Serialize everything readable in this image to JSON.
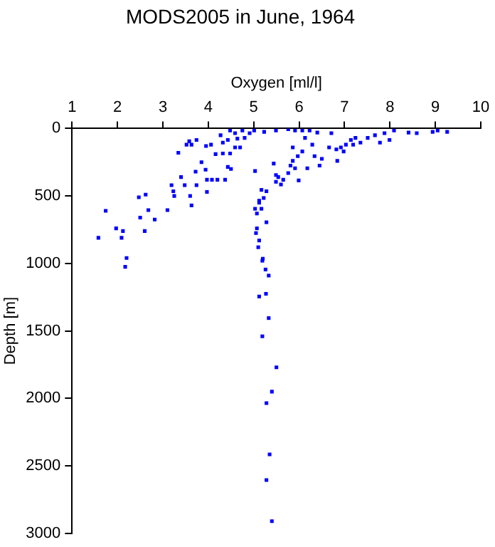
{
  "chart_data": {
    "type": "scatter",
    "title": "MODS2005 in June, 1964",
    "xlabel": "Oxygen [ml/l]",
    "ylabel": "Depth [m]",
    "xlim": [
      1,
      10
    ],
    "xticks": [
      1,
      2,
      3,
      4,
      5,
      6,
      7,
      8,
      9,
      10
    ],
    "ylim": [
      3000,
      0
    ],
    "yticks": [
      0,
      500,
      1000,
      1500,
      2000,
      2500,
      3000
    ],
    "grid": false,
    "legend": false,
    "marker": "square",
    "series": [
      {
        "color": "#0000ff",
        "x": [
          3.34,
          3.4,
          3.19,
          3.48,
          3.23,
          3.25,
          3.6,
          3.74,
          3.72,
          3.94,
          3.85,
          3.97,
          4.08,
          4.2,
          4.37,
          3.97,
          3.63,
          3.1,
          2.47,
          2.62,
          2.68,
          2.5,
          2.82,
          2.6,
          1.74,
          1.97,
          2.12,
          1.58,
          2.09,
          2.2,
          2.17,
          3.58,
          3.63,
          3.74,
          3.52,
          3.95,
          4.06,
          4.27,
          4.32,
          4.16,
          4.32,
          4.48,
          4.43,
          4.5,
          4.59,
          4.7,
          4.48,
          4.59,
          4.75,
          4.91,
          5.01,
          5.23,
          4.8,
          4.64,
          4.43,
          5.03,
          5.17,
          5.28,
          5.12,
          5.03,
          5.07,
          5.17,
          5.12,
          5.22,
          5.28,
          5.07,
          5.05,
          5.12,
          5.1,
          5.2,
          5.19,
          5.26,
          5.33,
          5.27,
          5.12,
          5.33,
          5.19,
          5.5,
          5.4,
          5.28,
          5.35,
          5.28,
          5.4,
          5.44,
          5.49,
          5.54,
          5.49,
          5.6,
          5.65,
          5.76,
          5.81,
          5.86,
          5.91,
          5.99,
          5.86,
          5.97,
          6.07,
          6.18,
          6.34,
          6.45,
          6.5,
          6.29,
          6.13,
          6.07,
          6.23,
          6.4,
          5.49,
          5.76,
          5.91,
          6.71,
          6.66,
          6.82,
          6.84,
          6.92,
          7.03,
          7.14,
          7.24,
          7.35,
          7.51,
          7.67,
          7.88,
          7.99,
          8.09,
          8.41,
          8.59,
          8.94,
          9.05,
          9.26,
          6.98,
          7.19,
          7.78
        ],
        "values": [
          180,
          360,
          420,
          420,
          465,
          500,
          500,
          420,
          320,
          305,
          250,
          380,
          380,
          380,
          380,
          470,
          570,
          605,
          510,
          490,
          605,
          660,
          675,
          760,
          610,
          740,
          760,
          810,
          810,
          960,
          1025,
          95,
          120,
          85,
          120,
          130,
          120,
          50,
          105,
          190,
          185,
          185,
          285,
          300,
          140,
          140,
          15,
          35,
          15,
          35,
          15,
          25,
          70,
          75,
          85,
          315,
          455,
          465,
          535,
          595,
          630,
          595,
          550,
          515,
          695,
          740,
          775,
          830,
          880,
          965,
          980,
          1045,
          1090,
          1225,
          1245,
          1405,
          1540,
          1770,
          1950,
          2035,
          2415,
          2605,
          2910,
          260,
          345,
          360,
          395,
          415,
          380,
          330,
          275,
          240,
          295,
          385,
          140,
          205,
          170,
          295,
          205,
          275,
          225,
          120,
          70,
          15,
          15,
          30,
          15,
          5,
          15,
          35,
          140,
          155,
          240,
          140,
          120,
          85,
          70,
          105,
          70,
          50,
          35,
          85,
          15,
          30,
          35,
          25,
          15,
          25,
          170,
          120,
          105
        ]
      }
    ]
  }
}
